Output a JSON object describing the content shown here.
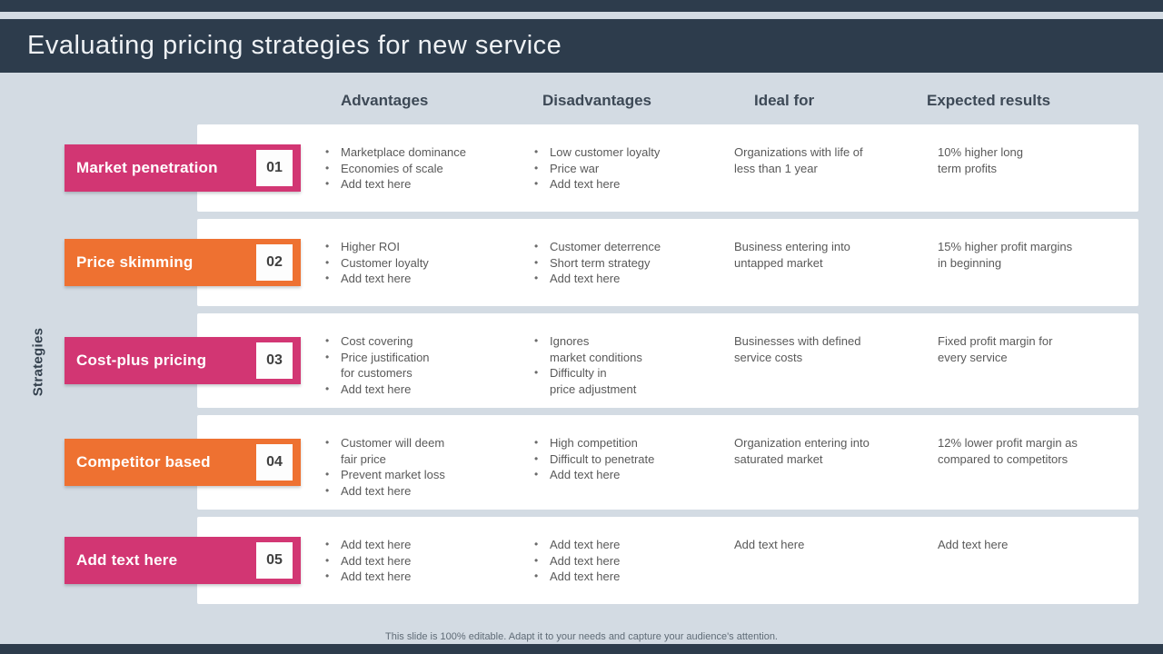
{
  "title": "Evaluating pricing strategies for new service",
  "side_label": "Strategies",
  "column_headers": [
    "Advantages",
    "Disadvantages",
    "Ideal for",
    "Expected results"
  ],
  "footer_note": "This slide is 100% editable. Adapt it to your needs and capture your audience's attention.",
  "colors": {
    "header_bar": "#2d3c4c",
    "background": "#d3dbe3",
    "card": "#ffffff",
    "pink_accent": "#d23673",
    "orange_accent": "#ee7131",
    "body_text": "#595959"
  },
  "rows": [
    {
      "label": "Market penetration",
      "number": "01",
      "accent": "#d23673",
      "advantages": [
        "Marketplace dominance",
        "Economies of scale",
        "Add text here"
      ],
      "disadvantages": [
        "Low customer loyalty",
        "Price war",
        "Add text here"
      ],
      "ideal_for": "Organizations with life of\nless than 1 year",
      "expected_results": "10% higher long\nterm profits"
    },
    {
      "label": "Price skimming",
      "number": "02",
      "accent": "#ee7131",
      "advantages": [
        "Higher ROI",
        "Customer loyalty",
        "Add text here"
      ],
      "disadvantages": [
        "Customer deterrence",
        "Short term strategy",
        "Add text here"
      ],
      "ideal_for": "Business entering into\nuntapped market",
      "expected_results": "15% higher profit margins\nin beginning"
    },
    {
      "label": "Cost-plus pricing",
      "number": "03",
      "accent": "#d23673",
      "advantages": [
        "Cost covering",
        "Price justification\nfor customers",
        "Add text here"
      ],
      "disadvantages": [
        "Ignores\nmarket conditions",
        "Difficulty in\nprice adjustment"
      ],
      "ideal_for": "Businesses with defined\nservice costs",
      "expected_results": "Fixed profit margin for\nevery service"
    },
    {
      "label": "Competitor based",
      "number": "04",
      "accent": "#ee7131",
      "advantages": [
        "Customer will deem\nfair price",
        "Prevent market loss",
        "Add text here"
      ],
      "disadvantages": [
        "High competition",
        "Difficult to penetrate",
        "Add text here"
      ],
      "ideal_for": "Organization entering into\nsaturated market",
      "expected_results": "12% lower profit margin as\ncompared to competitors"
    },
    {
      "label": "Add text here",
      "number": "05",
      "accent": "#d23673",
      "advantages": [
        "Add text here",
        "Add text here",
        "Add text here"
      ],
      "disadvantages": [
        "Add text here",
        "Add text here",
        "Add text here"
      ],
      "ideal_for": "Add text here",
      "expected_results": "Add text here"
    }
  ]
}
